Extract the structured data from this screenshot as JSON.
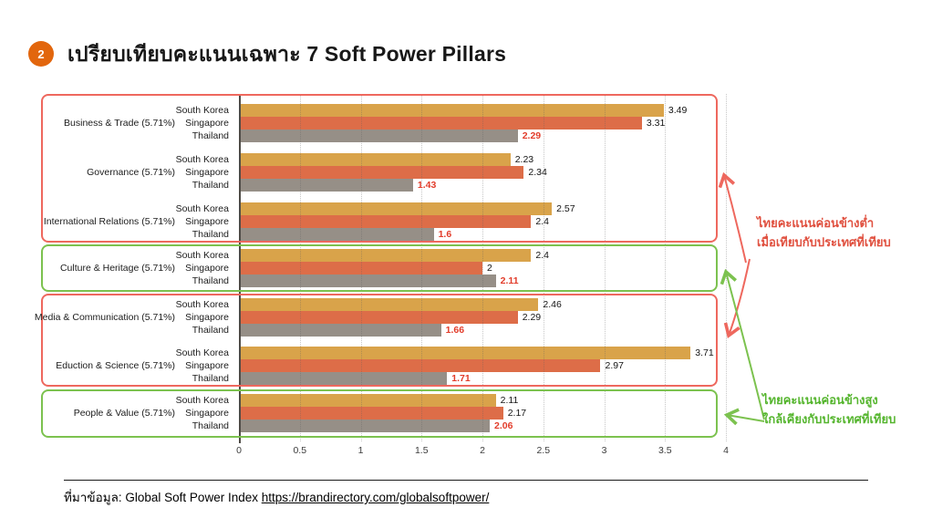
{
  "header": {
    "badge": "2",
    "title": "เปรียบเทียบคะแนนเฉพาะ 7 Soft Power Pillars"
  },
  "chart_data": {
    "type": "bar",
    "orientation": "horizontal",
    "title": "",
    "xlabel": "",
    "ylabel": "",
    "xlim": [
      0,
      4
    ],
    "xticks": [
      "0",
      "0.5",
      "1",
      "1.5",
      "2",
      "2.5",
      "3",
      "3.5",
      "4"
    ],
    "grid": "vertical-dotted",
    "legend_position": "none (series named per row)",
    "series_names": [
      "South Korea",
      "Singapore",
      "Thailand"
    ],
    "groups": [
      {
        "category": "Business & Trade (5.71%)",
        "values": [
          3.49,
          3.31,
          2.29
        ],
        "value_labels": [
          "3.49",
          "3.31",
          "2.29"
        ]
      },
      {
        "category": "Governance (5.71%)",
        "values": [
          2.23,
          2.34,
          1.43
        ],
        "value_labels": [
          "2.23",
          "2.34",
          "1.43"
        ]
      },
      {
        "category": "International Relations (5.71%)",
        "values": [
          2.57,
          2.4,
          1.6
        ],
        "value_labels": [
          "2.57",
          "2.4",
          "1.6"
        ]
      },
      {
        "category": "Culture & Heritage (5.71%)",
        "values": [
          2.4,
          2.0,
          2.11
        ],
        "value_labels": [
          "2.4",
          "2",
          "2.11"
        ]
      },
      {
        "category": "Media & Communication (5.71%)",
        "values": [
          2.46,
          2.29,
          1.66
        ],
        "value_labels": [
          "2.46",
          "2.29",
          "1.66"
        ]
      },
      {
        "category": "Eduction & Science (5.71%)",
        "values": [
          3.71,
          2.97,
          1.71
        ],
        "value_labels": [
          "3.71",
          "2.97",
          "1.71"
        ]
      },
      {
        "category": "People & Value (5.71%)",
        "values": [
          2.11,
          2.17,
          2.06
        ],
        "value_labels": [
          "2.11",
          "2.17",
          "2.06"
        ]
      }
    ],
    "group_boxes": [
      {
        "first_row": 0,
        "last_row": 2,
        "color": "red"
      },
      {
        "first_row": 3,
        "last_row": 3,
        "color": "green"
      },
      {
        "first_row": 4,
        "last_row": 5,
        "color": "red"
      },
      {
        "first_row": 6,
        "last_row": 6,
        "color": "green"
      }
    ],
    "highlight_series": "Thailand"
  },
  "annotations": {
    "low_note": {
      "lines": [
        "ไทยคะแนนค่อนข้างต่ำ",
        "เมื่อเทียบกับประเทศที่เทียบ"
      ],
      "points_to": "red boxes"
    },
    "high_note": {
      "lines": [
        "ไทยคะแนนค่อนข้างสูง",
        "ใกล้เคียงกับประเทศที่เทียบ"
      ],
      "points_to": "green boxes"
    }
  },
  "footer": {
    "source_prefix": "ที่มาข้อมูล: Global Soft Power Index ",
    "source_link_text": "https://brandirectory.com/globalsoftpower/",
    "source_link_href": "https://brandirectory.com/globalsoftpower/"
  },
  "colors": {
    "south_korea_bar": "#D9A34A",
    "singapore_bar": "#DD6D48",
    "thailand_bar": "#968F87",
    "red_outline": "#EE685E",
    "green_outline": "#7CC24F",
    "highlight_value": "#E23C2A",
    "low_note_text": "#E0503F",
    "high_note_text": "#55B52E",
    "badge_background": "#E2660D"
  }
}
